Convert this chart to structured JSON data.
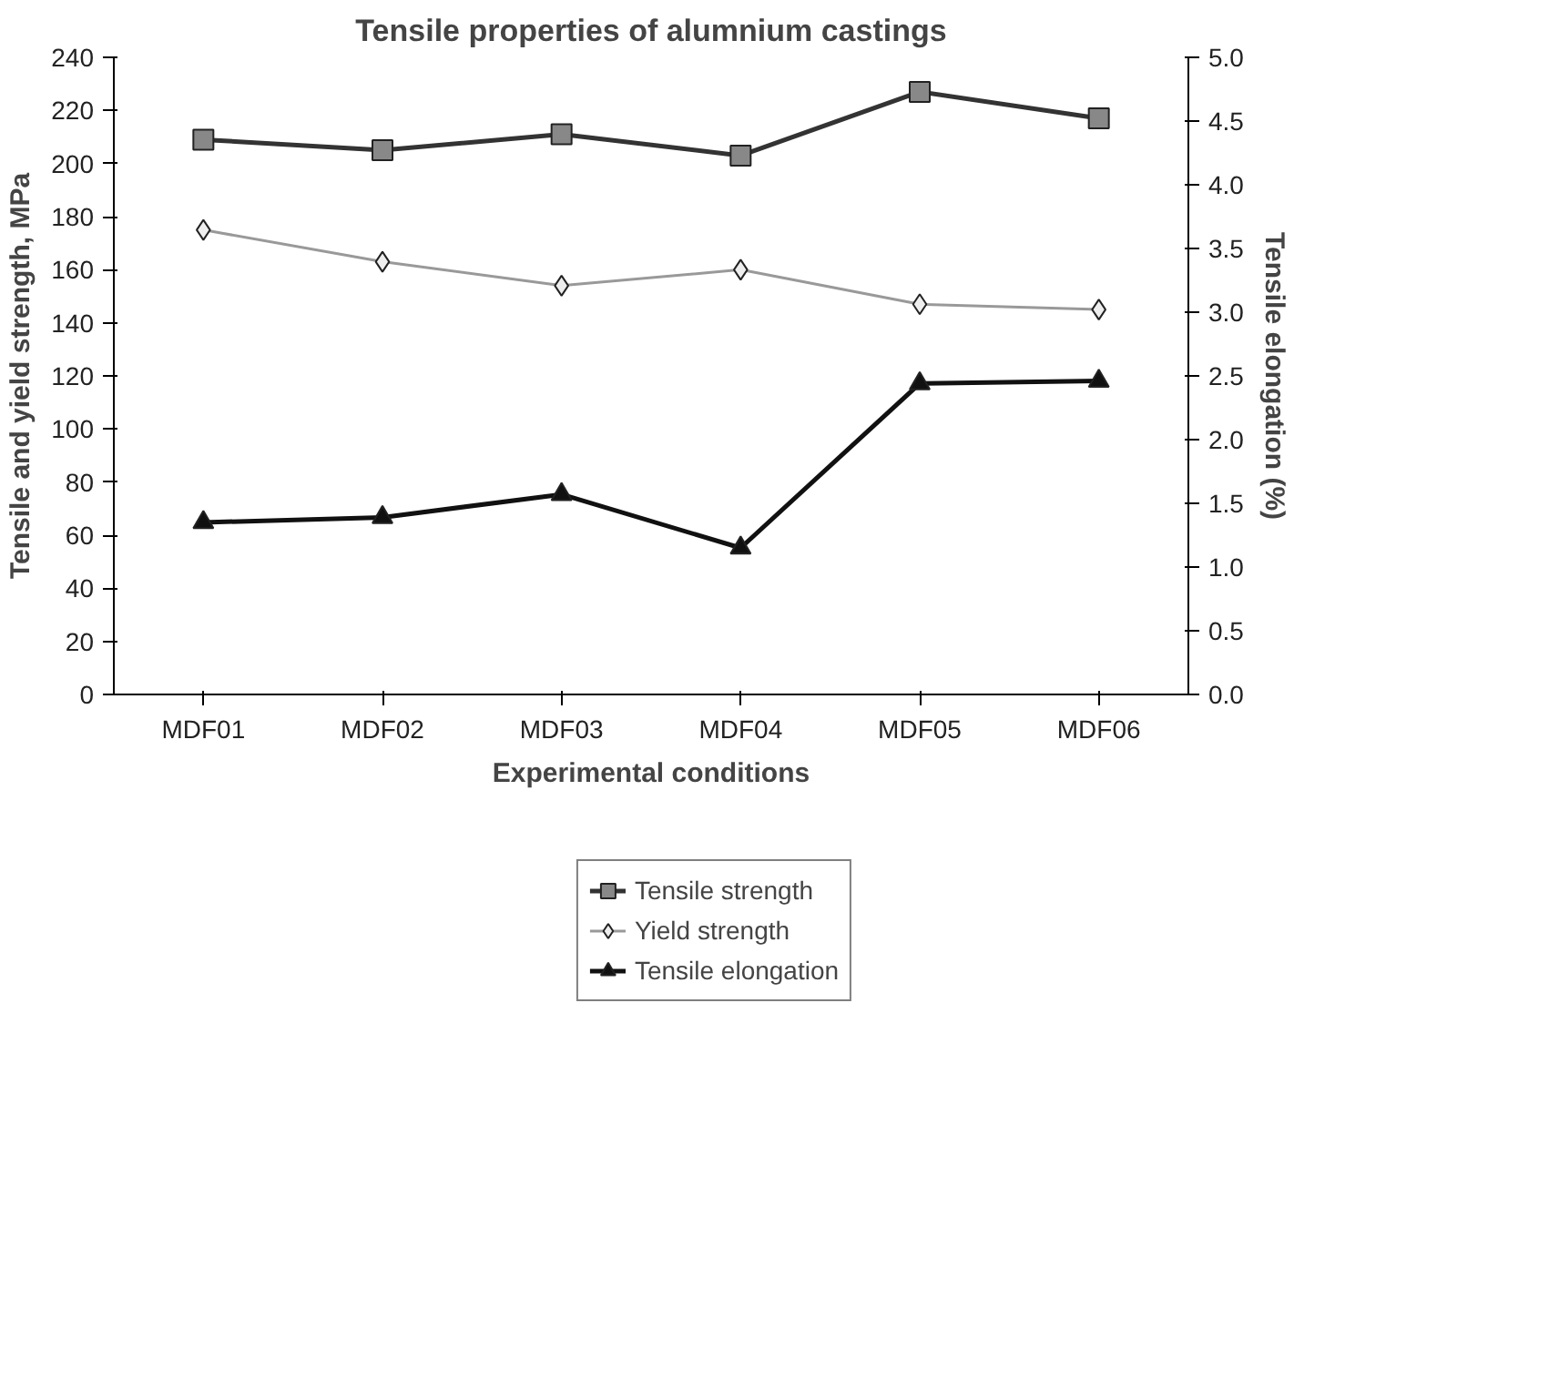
{
  "chart_data": {
    "type": "line",
    "title": "Tensile properties of alumnium castings",
    "xlabel": "Experimental conditions",
    "ylabel": "Tensile and yield strength, MPa",
    "y2label": "Tensile elongation (%)",
    "categories": [
      "MDF01",
      "MDF02",
      "MDF03",
      "MDF04",
      "MDF05",
      "MDF06"
    ],
    "ylim": [
      0,
      240
    ],
    "yticks": [
      0,
      20,
      40,
      60,
      80,
      100,
      120,
      140,
      160,
      180,
      200,
      220,
      240
    ],
    "y2lim": [
      0,
      5
    ],
    "y2ticks": [
      {
        "value": 0,
        "label": "0.0"
      },
      {
        "value": 0.5,
        "label": "0.5"
      },
      {
        "value": 1,
        "label": "1.0"
      },
      {
        "value": 1.5,
        "label": "1.5"
      },
      {
        "value": 2,
        "label": "2.0"
      },
      {
        "value": 2.5,
        "label": "2.5"
      },
      {
        "value": 3,
        "label": "3.0"
      },
      {
        "value": 3.5,
        "label": "3.5"
      },
      {
        "value": 4,
        "label": "4.0"
      },
      {
        "value": 4.5,
        "label": "4.5"
      },
      {
        "value": 5,
        "label": "5.0"
      }
    ],
    "grid": false,
    "legend": "bottom",
    "series": [
      {
        "name": "Tensile strength",
        "color": "#333333",
        "marker": "square",
        "values": [
          209,
          205,
          211,
          203,
          227,
          217
        ]
      },
      {
        "name": "Yield strength",
        "color": "#999999",
        "marker": "diamond",
        "values": [
          175,
          163,
          154,
          160,
          147,
          145
        ]
      },
      {
        "name": "Tensile elongation",
        "color": "#111111",
        "marker": "triangle",
        "axis": "y2",
        "values": [
          1.35,
          1.39,
          1.57,
          1.15,
          2.44,
          2.46
        ]
      }
    ]
  }
}
